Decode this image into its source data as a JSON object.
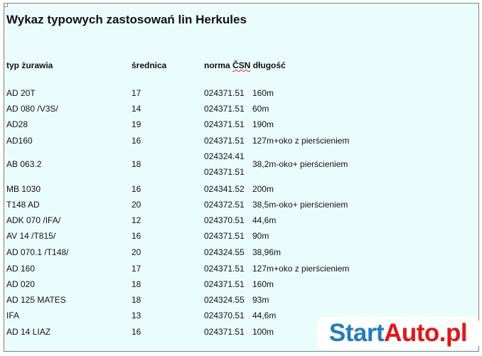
{
  "title": "Wykaz typowych zastosowań lin Herkules",
  "headers": {
    "type": "typ żurawia",
    "diameter": "średnica",
    "norm_prefix": "norma ",
    "norm_csn": "ČSN",
    "length": "długość"
  },
  "rows": [
    {
      "type": "AD 20T",
      "diameter": "17",
      "norms": [
        "024371.51"
      ],
      "length": "160m"
    },
    {
      "type": "AD 080 /V3S/",
      "diameter": "14",
      "norms": [
        "024371.51"
      ],
      "length": "60m"
    },
    {
      "type": "AD28",
      "diameter": "19",
      "norms": [
        "024371.51"
      ],
      "length": "190m"
    },
    {
      "type": "AD160",
      "diameter": "16",
      "norms": [
        "024371.51"
      ],
      "length": "127m+oko z pierścieniem"
    },
    {
      "type": "AB 063.2",
      "diameter": "18",
      "norms": [
        "024324.41",
        "024371.51"
      ],
      "length": "38,2m-oko+ pierścieniem"
    },
    {
      "type": "MB 1030",
      "diameter": "16",
      "norms": [
        "024341.52"
      ],
      "length": "200m"
    },
    {
      "type": "T148 AD",
      "diameter": "20",
      "norms": [
        "024372.51"
      ],
      "length": "38,5m-oko+ pierścieniem"
    },
    {
      "type": "ADK 070 /IFA/",
      "diameter": "12",
      "norms": [
        "024370.51"
      ],
      "length": "44,6m"
    },
    {
      "type": "AV 14 /T815/",
      "diameter": "16",
      "norms": [
        "024371.51"
      ],
      "length": "90m"
    },
    {
      "type": "AD 070.1 /T148/",
      "diameter": "20",
      "norms": [
        "024324.55"
      ],
      "length": "38,96m"
    },
    {
      "type": "AD 160",
      "diameter": "17",
      "norms": [
        "024371.51"
      ],
      "length": "127m+oko z pierścieniem"
    },
    {
      "type": "AD 020",
      "diameter": "18",
      "norms": [
        "024371.51"
      ],
      "length": "160m"
    },
    {
      "type": "AD 125 MATES",
      "diameter": "18",
      "norms": [
        "024324.55"
      ],
      "length": "93m"
    },
    {
      "type": "IFA",
      "diameter": "13",
      "norms": [
        "024370.51"
      ],
      "length": "44,6m"
    },
    {
      "type": "AD 14 LIAZ",
      "diameter": "16",
      "norms": [
        "024371.51"
      ],
      "length": "100m"
    }
  ],
  "watermark": {
    "part1": "Start",
    "part2": "Auto.pl",
    "color1": "#1f7ec0",
    "color2": "#ee1111"
  }
}
